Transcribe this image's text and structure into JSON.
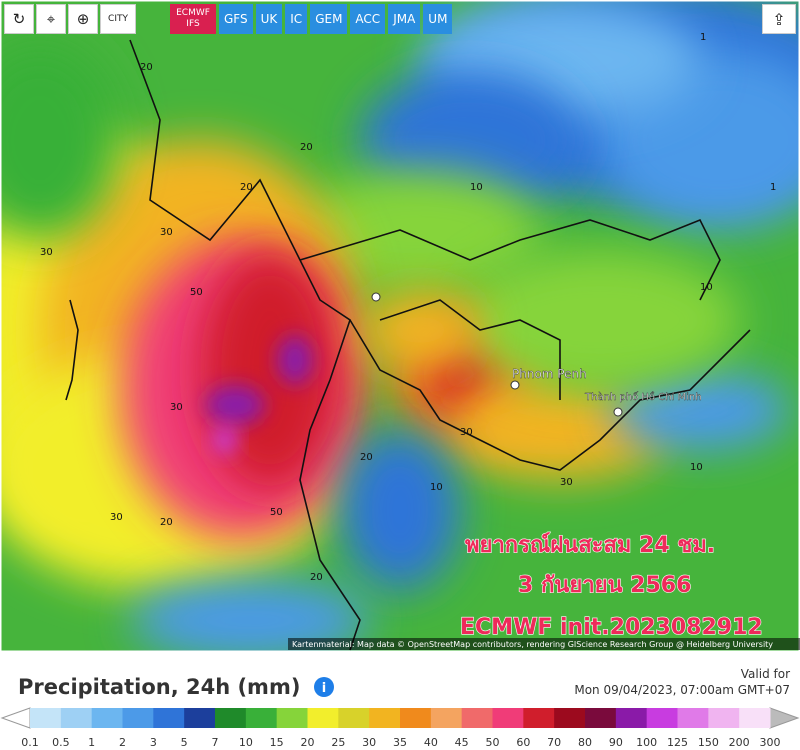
{
  "toolbar": {
    "city_button": "CITY",
    "models": [
      "ECMWF IFS",
      "GFS",
      "UK",
      "IC",
      "GEM",
      "ACC",
      "JMA",
      "UM"
    ],
    "active_model": 0
  },
  "map": {
    "places": [
      "Phnom Penh",
      "Thành phố Hồ Chí Minh"
    ],
    "contour_labels": [
      "20",
      "20",
      "20",
      "30",
      "30",
      "30",
      "50",
      "50",
      "30",
      "20",
      "10",
      "10",
      "1",
      "1",
      "10",
      "30",
      "20",
      "20",
      "10",
      "30"
    ],
    "overlay": [
      "พยากรณ์ฝนสะสม 24 ชม.",
      "3 กันยายน 2566",
      "ECMWF init.2023082912"
    ],
    "attribution": "Kartenmaterial: Map data © OpenStreetMap contributors, rendering GIScience Research Group @ Heidelberg University"
  },
  "legend": {
    "title": "Precipitation, 24h (mm)",
    "valid_label": "Valid for",
    "valid_time": "Mon 09/04/2023, 07:00am GMT+07",
    "labels": [
      "0.1",
      "0.5",
      "1",
      "2",
      "3",
      "5",
      "7",
      "10",
      "15",
      "20",
      "25",
      "30",
      "35",
      "40",
      "45",
      "50",
      "60",
      "70",
      "80",
      "90",
      "100",
      "125",
      "150",
      "200",
      "300"
    ],
    "colors": [
      "#c4e4f8",
      "#9ed0f4",
      "#6cb6f0",
      "#4c9ae8",
      "#2f74d8",
      "#1c3f9c",
      "#1f8a2a",
      "#39b039",
      "#86d43a",
      "#f2ee2c",
      "#d8d22a",
      "#f2b420",
      "#f08a1c",
      "#f4a460",
      "#f06a6a",
      "#f03c78",
      "#d01e2c",
      "#9c0a1e",
      "#7a0a3c",
      "#8a1aa8",
      "#c83ce0",
      "#e07ae8",
      "#f0b4f0",
      "#f8e0f8"
    ]
  }
}
